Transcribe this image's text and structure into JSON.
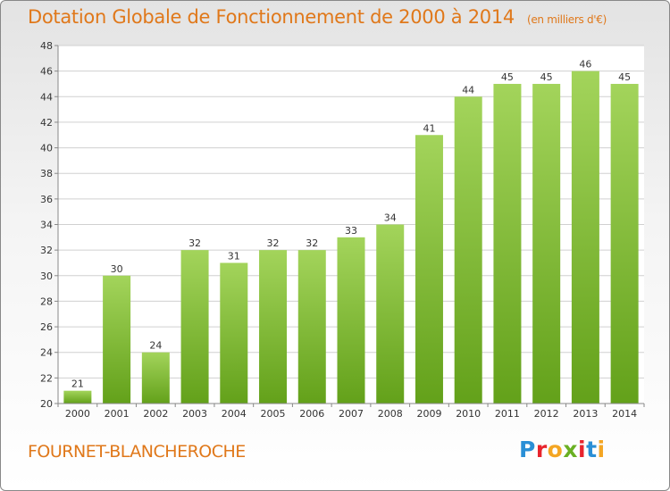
{
  "header": {
    "title": "Dotation Globale de Fonctionnement de 2000 à 2014",
    "unit": "(en milliers d'€)"
  },
  "footer": {
    "commune": "FOURNET-BLANCHEROCHE",
    "logo": "Proxiti"
  },
  "colors": {
    "accent": "#e0781a",
    "bar_top": "#a3d45b",
    "bar_bottom": "#63a11a"
  },
  "chart_data": {
    "type": "bar",
    "title": "Dotation Globale de Fonctionnement de 2000 à 2014",
    "subtitle": "(en milliers d'€)",
    "categories": [
      "2000",
      "2001",
      "2002",
      "2003",
      "2004",
      "2005",
      "2006",
      "2007",
      "2008",
      "2009",
      "2010",
      "2011",
      "2012",
      "2013",
      "2014"
    ],
    "values": [
      21,
      30,
      24,
      32,
      31,
      32,
      32,
      33,
      34,
      41,
      44,
      45,
      45,
      46,
      45
    ],
    "ylim": [
      20,
      48
    ],
    "yticks": [
      20,
      22,
      24,
      26,
      28,
      30,
      32,
      34,
      36,
      38,
      40,
      42,
      44,
      46,
      48
    ],
    "grid": true,
    "legend": "none"
  }
}
